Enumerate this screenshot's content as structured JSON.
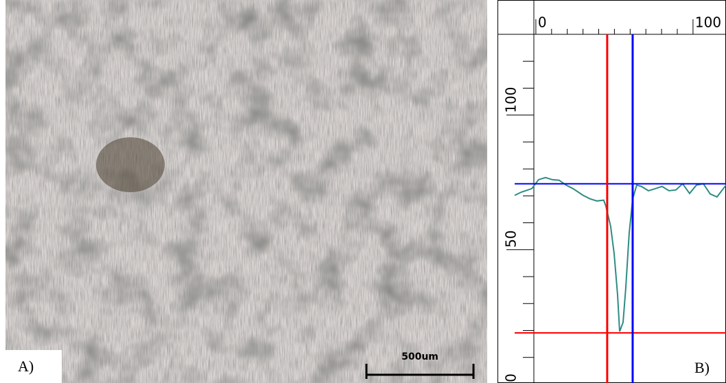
{
  "panels": {
    "a_label": "A)",
    "b_label": "B)",
    "scale_bar": "500um"
  },
  "chart_data": {
    "type": "line",
    "x": [
      -13.5,
      -9.2,
      -2.6,
      1.7,
      6.1,
      10.5,
      14.8,
      19.2,
      23.6,
      30.1,
      34.5,
      38.9,
      43.2,
      44.5,
      47.6,
      49.8,
      52.0,
      53.3,
      55.5,
      57.2,
      59.4,
      61.6,
      64.2,
      67.2,
      71.6,
      76.0,
      80.3,
      84.7,
      89.1,
      93.4,
      97.8,
      102.2,
      106.6,
      110.9,
      115.3,
      121.0
    ],
    "series": [
      {
        "color": "#2e8b84",
        "values": [
          70.2,
          71.4,
          72.7,
          76.0,
          76.8,
          76.0,
          75.8,
          74.0,
          72.7,
          70.2,
          68.9,
          68.1,
          68.4,
          66.3,
          58.7,
          48.5,
          33.2,
          19.6,
          23.0,
          35.7,
          56.1,
          68.9,
          74.0,
          73.5,
          71.9,
          72.7,
          73.5,
          71.9,
          72.2,
          74.5,
          70.9,
          74.0,
          74.5,
          70.7,
          69.6,
          74.0
        ]
      }
    ],
    "xlim": [
      -13.5,
      121
    ],
    "xticks": [
      0,
      100
    ],
    "x_minor_ticks": [
      10,
      20,
      30,
      40,
      50,
      60,
      70,
      80,
      90
    ],
    "ylim": [
      1,
      130
    ],
    "yticks": [
      0,
      50,
      100
    ],
    "y_minor_ticks": [
      10,
      20,
      30,
      40,
      60,
      70,
      80,
      90,
      110,
      120
    ],
    "vlines": [
      {
        "value": 45.4,
        "color": "#ff0000"
      },
      {
        "value": 61.6,
        "color": "#0000ff"
      }
    ],
    "hlines": [
      {
        "value": 74.5,
        "color": "#0000ff"
      },
      {
        "value": 19.1,
        "color": "#ff0000"
      }
    ]
  }
}
